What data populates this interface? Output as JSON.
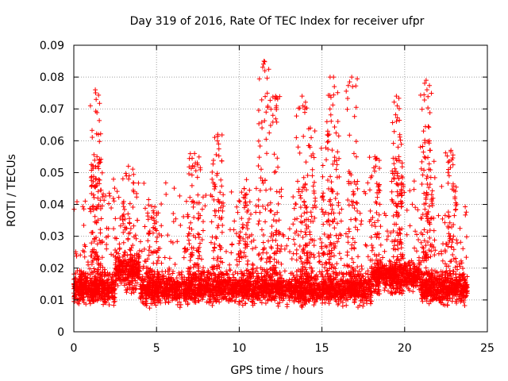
{
  "chart_data": {
    "type": "scatter",
    "title": "Day 319 of 2016, Rate Of TEC Index for receiver ufpr",
    "xlabel": "GPS time / hours",
    "ylabel": "ROTI / TECUs",
    "xlim": [
      0,
      25
    ],
    "ylim": [
      0,
      0.09
    ],
    "x_ticks": [
      "0",
      "5",
      "10",
      "15",
      "20",
      "25"
    ],
    "y_ticks": [
      "0",
      "0.01",
      "0.02",
      "0.03",
      "0.04",
      "0.05",
      "0.06",
      "0.07",
      "0.08",
      "0.09"
    ],
    "grid": true,
    "legend": "none",
    "marker": "plus",
    "color": "#ff0000",
    "time_range_hours": [
      0,
      23.8
    ],
    "baseline_band": [
      0.007,
      0.02
    ],
    "peaks": [
      {
        "x": 1.3,
        "y": 0.076
      },
      {
        "x": 1.4,
        "y": 0.055
      },
      {
        "x": 3.3,
        "y": 0.052
      },
      {
        "x": 4.8,
        "y": 0.038
      },
      {
        "x": 7.3,
        "y": 0.056
      },
      {
        "x": 8.7,
        "y": 0.062
      },
      {
        "x": 10.3,
        "y": 0.045
      },
      {
        "x": 11.5,
        "y": 0.085
      },
      {
        "x": 12.2,
        "y": 0.074
      },
      {
        "x": 13.8,
        "y": 0.074
      },
      {
        "x": 14.3,
        "y": 0.064
      },
      {
        "x": 15.3,
        "y": 0.066
      },
      {
        "x": 15.7,
        "y": 0.08
      },
      {
        "x": 16.8,
        "y": 0.08
      },
      {
        "x": 18.2,
        "y": 0.055
      },
      {
        "x": 19.5,
        "y": 0.074
      },
      {
        "x": 19.6,
        "y": 0.058
      },
      {
        "x": 21.3,
        "y": 0.079
      },
      {
        "x": 21.5,
        "y": 0.06
      },
      {
        "x": 22.8,
        "y": 0.057
      }
    ],
    "sample_count": 3800
  }
}
